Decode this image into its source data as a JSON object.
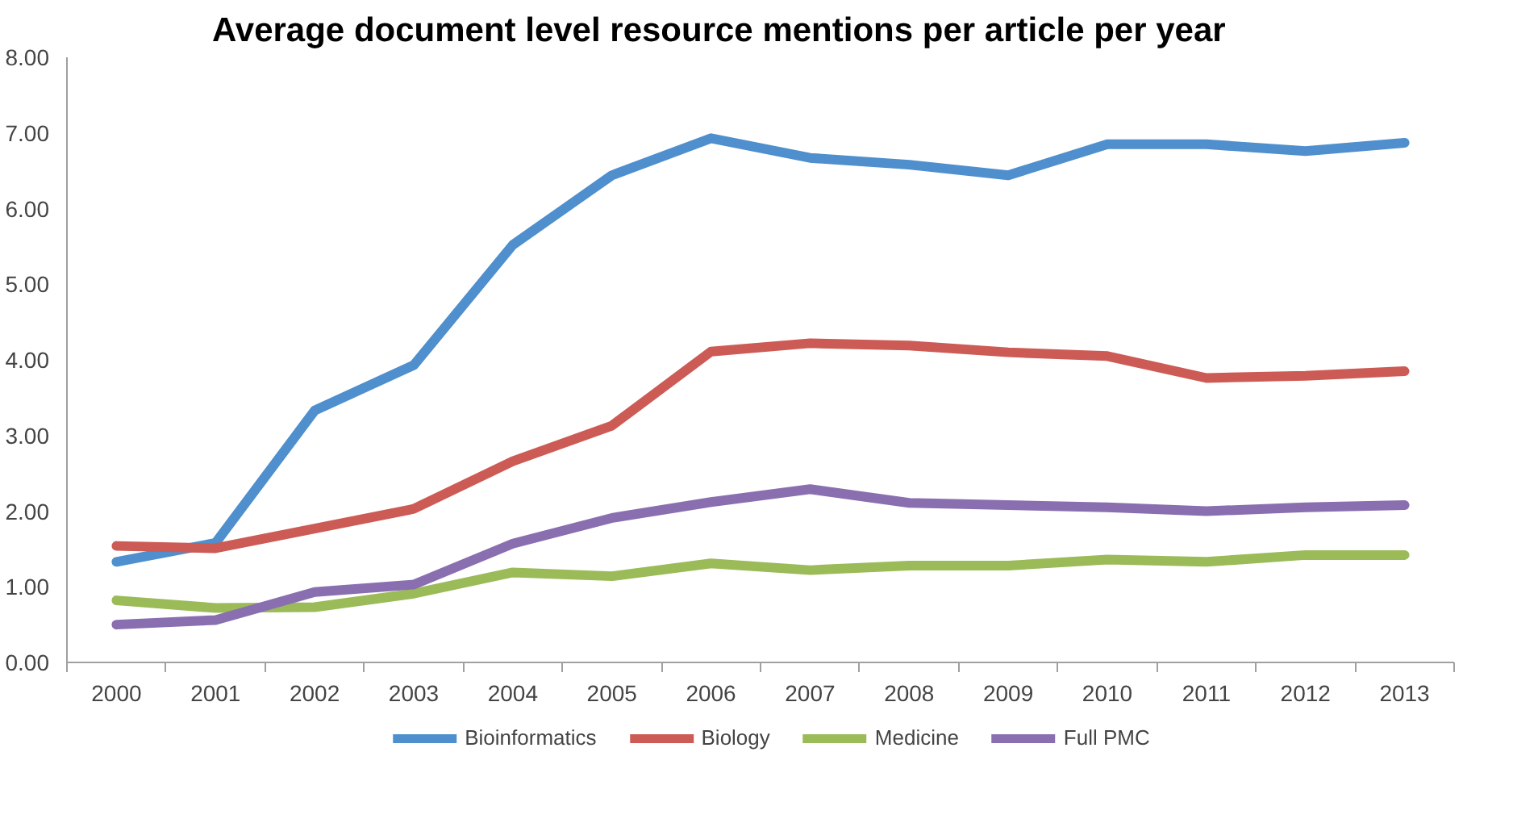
{
  "chart_data": {
    "type": "line",
    "title": "Average document level resource mentions per article per year",
    "categories": [
      "2000",
      "2001",
      "2002",
      "2003",
      "2004",
      "2005",
      "2006",
      "2007",
      "2008",
      "2009",
      "2010",
      "2011",
      "2012",
      "2013"
    ],
    "series": [
      {
        "name": "Bioinformatics",
        "color": "#4f8fcd",
        "values": [
          1.33,
          1.58,
          3.33,
          3.93,
          5.52,
          6.44,
          6.93,
          6.67,
          6.58,
          6.44,
          6.85,
          6.85,
          6.76,
          6.87
        ]
      },
      {
        "name": "Biology",
        "color": "#cd5b55",
        "values": [
          1.54,
          1.51,
          1.77,
          2.03,
          2.66,
          3.13,
          4.11,
          4.22,
          4.19,
          4.1,
          4.05,
          3.76,
          3.79,
          3.85
        ]
      },
      {
        "name": "Medicine",
        "color": "#9bbb59",
        "values": [
          0.82,
          0.72,
          0.73,
          0.91,
          1.19,
          1.14,
          1.31,
          1.22,
          1.28,
          1.28,
          1.36,
          1.33,
          1.42,
          1.42
        ]
      },
      {
        "name": "Full PMC",
        "color": "#8a6fb0",
        "values": [
          0.5,
          0.56,
          0.93,
          1.03,
          1.57,
          1.91,
          2.12,
          2.29,
          2.11,
          2.08,
          2.05,
          2.0,
          2.05,
          2.08
        ]
      }
    ],
    "ylim": [
      0,
      8
    ],
    "yticks": [
      {
        "value": 0,
        "label": "0.00"
      },
      {
        "value": 1,
        "label": "1.00"
      },
      {
        "value": 2,
        "label": "2.00"
      },
      {
        "value": 3,
        "label": "3.00"
      },
      {
        "value": 4,
        "label": "4.00"
      },
      {
        "value": 5,
        "label": "5.00"
      },
      {
        "value": 6,
        "label": "6.00"
      },
      {
        "value": 7,
        "label": "7.00"
      },
      {
        "value": 8,
        "label": "8.00"
      }
    ],
    "grid": false,
    "legend": "bottom",
    "marker": "none",
    "line_style": "solid"
  }
}
